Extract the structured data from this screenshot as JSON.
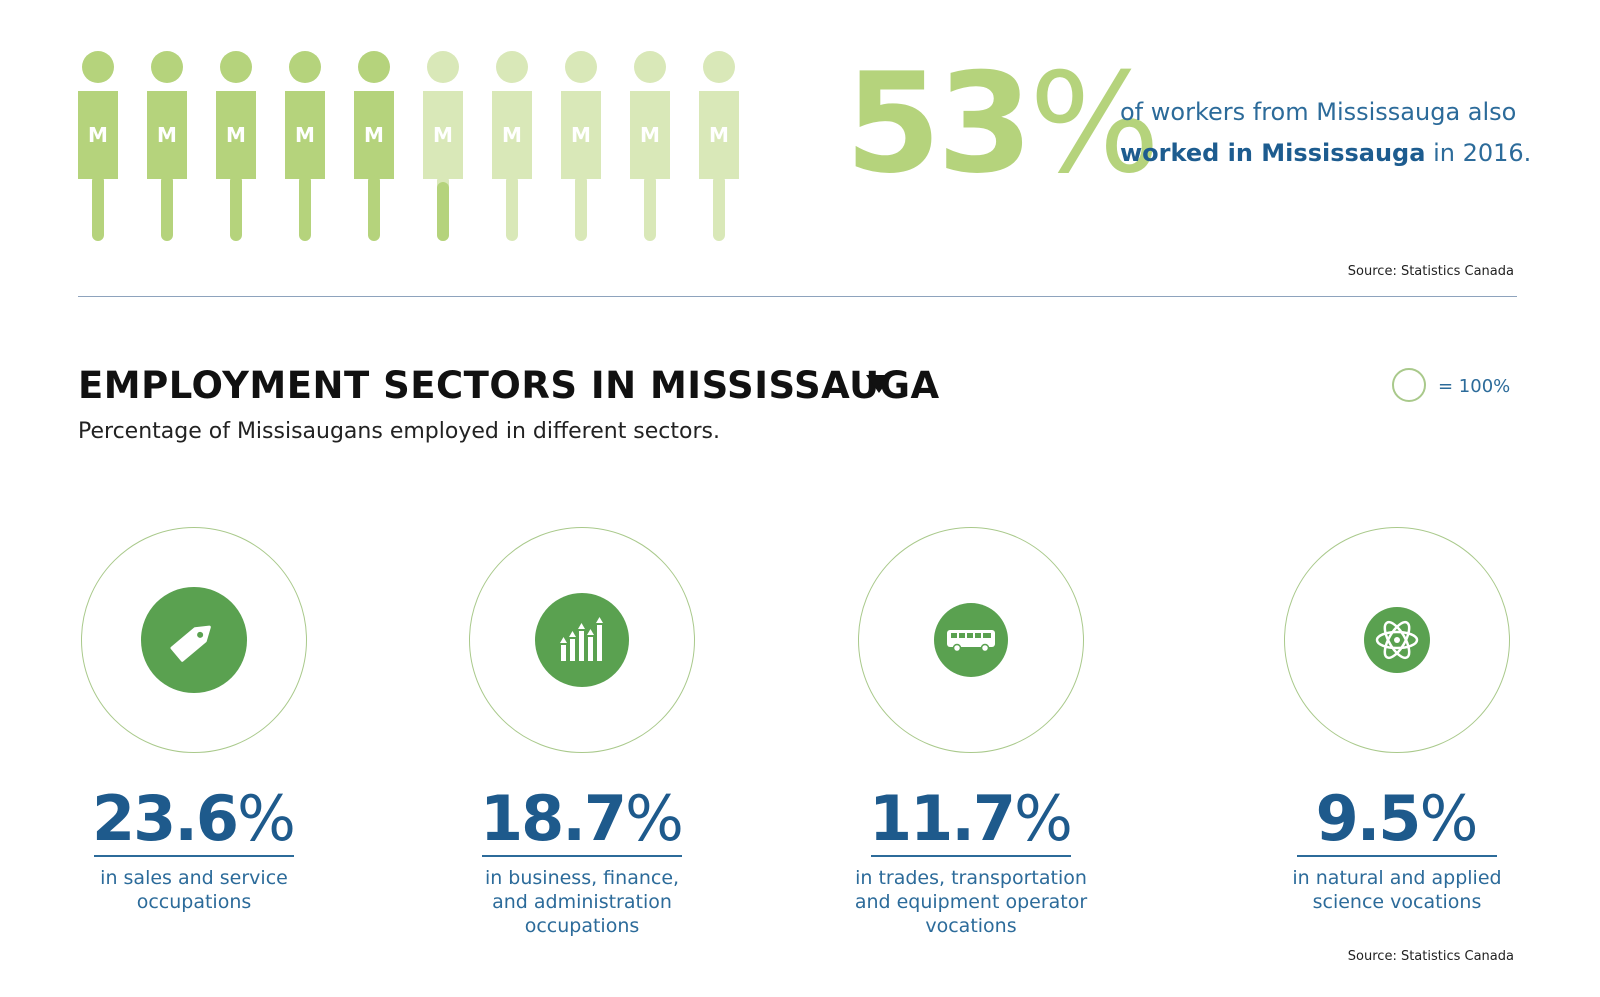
{
  "pictogram": {
    "letter": "M",
    "total": 10,
    "highlighted": 5.3,
    "colors": {
      "dark": "#b5d37c",
      "light": "#d9e8b8"
    }
  },
  "headline": {
    "value": "53",
    "unit": "%",
    "desc_part1": "of workers from Mississauga also",
    "desc_bold": "worked in Mississauga",
    "desc_part2": "in 2016."
  },
  "source_top": "Source: Statistics Canada",
  "section": {
    "title": "EMPLOYMENT SECTORS IN MISSISSAUGA",
    "subtitle": "Percentage of Missisaugans employed in different sectors.",
    "legend_text": "= 100%"
  },
  "chart_data": {
    "type": "bubble",
    "title": "EMPLOYMENT SECTORS IN MISSISSAUGA",
    "unit": "%",
    "legend": "circle = 100%",
    "categories": [
      "in sales and service occupations",
      "in business, finance, and administration occupations",
      "in trades, transportation and equipment operator vocations",
      "in natural and applied science vocations"
    ],
    "values": [
      23.6,
      18.7,
      11.7,
      9.5
    ]
  },
  "sectors": [
    {
      "value": "23.6",
      "unit": "%",
      "label_lines": [
        "in sales and service",
        "occupations"
      ],
      "icon": "tag-icon"
    },
    {
      "value": "18.7",
      "unit": "%",
      "label_lines": [
        "in business, finance,",
        "and administration",
        "occupations"
      ],
      "icon": "growth-chart-icon"
    },
    {
      "value": "11.7",
      "unit": "%",
      "label_lines": [
        "in trades, transportation",
        "and equipment operator",
        "vocations"
      ],
      "icon": "bus-icon"
    },
    {
      "value": "9.5",
      "unit": "%",
      "label_lines": [
        "in natural and applied",
        "science vocations"
      ],
      "icon": "atom-icon"
    }
  ],
  "source_bottom": "Source: Statistics Canada",
  "colors": {
    "accent_green": "#5aa150",
    "ring": "#a9c98b",
    "blue": "#1e5a8c"
  }
}
